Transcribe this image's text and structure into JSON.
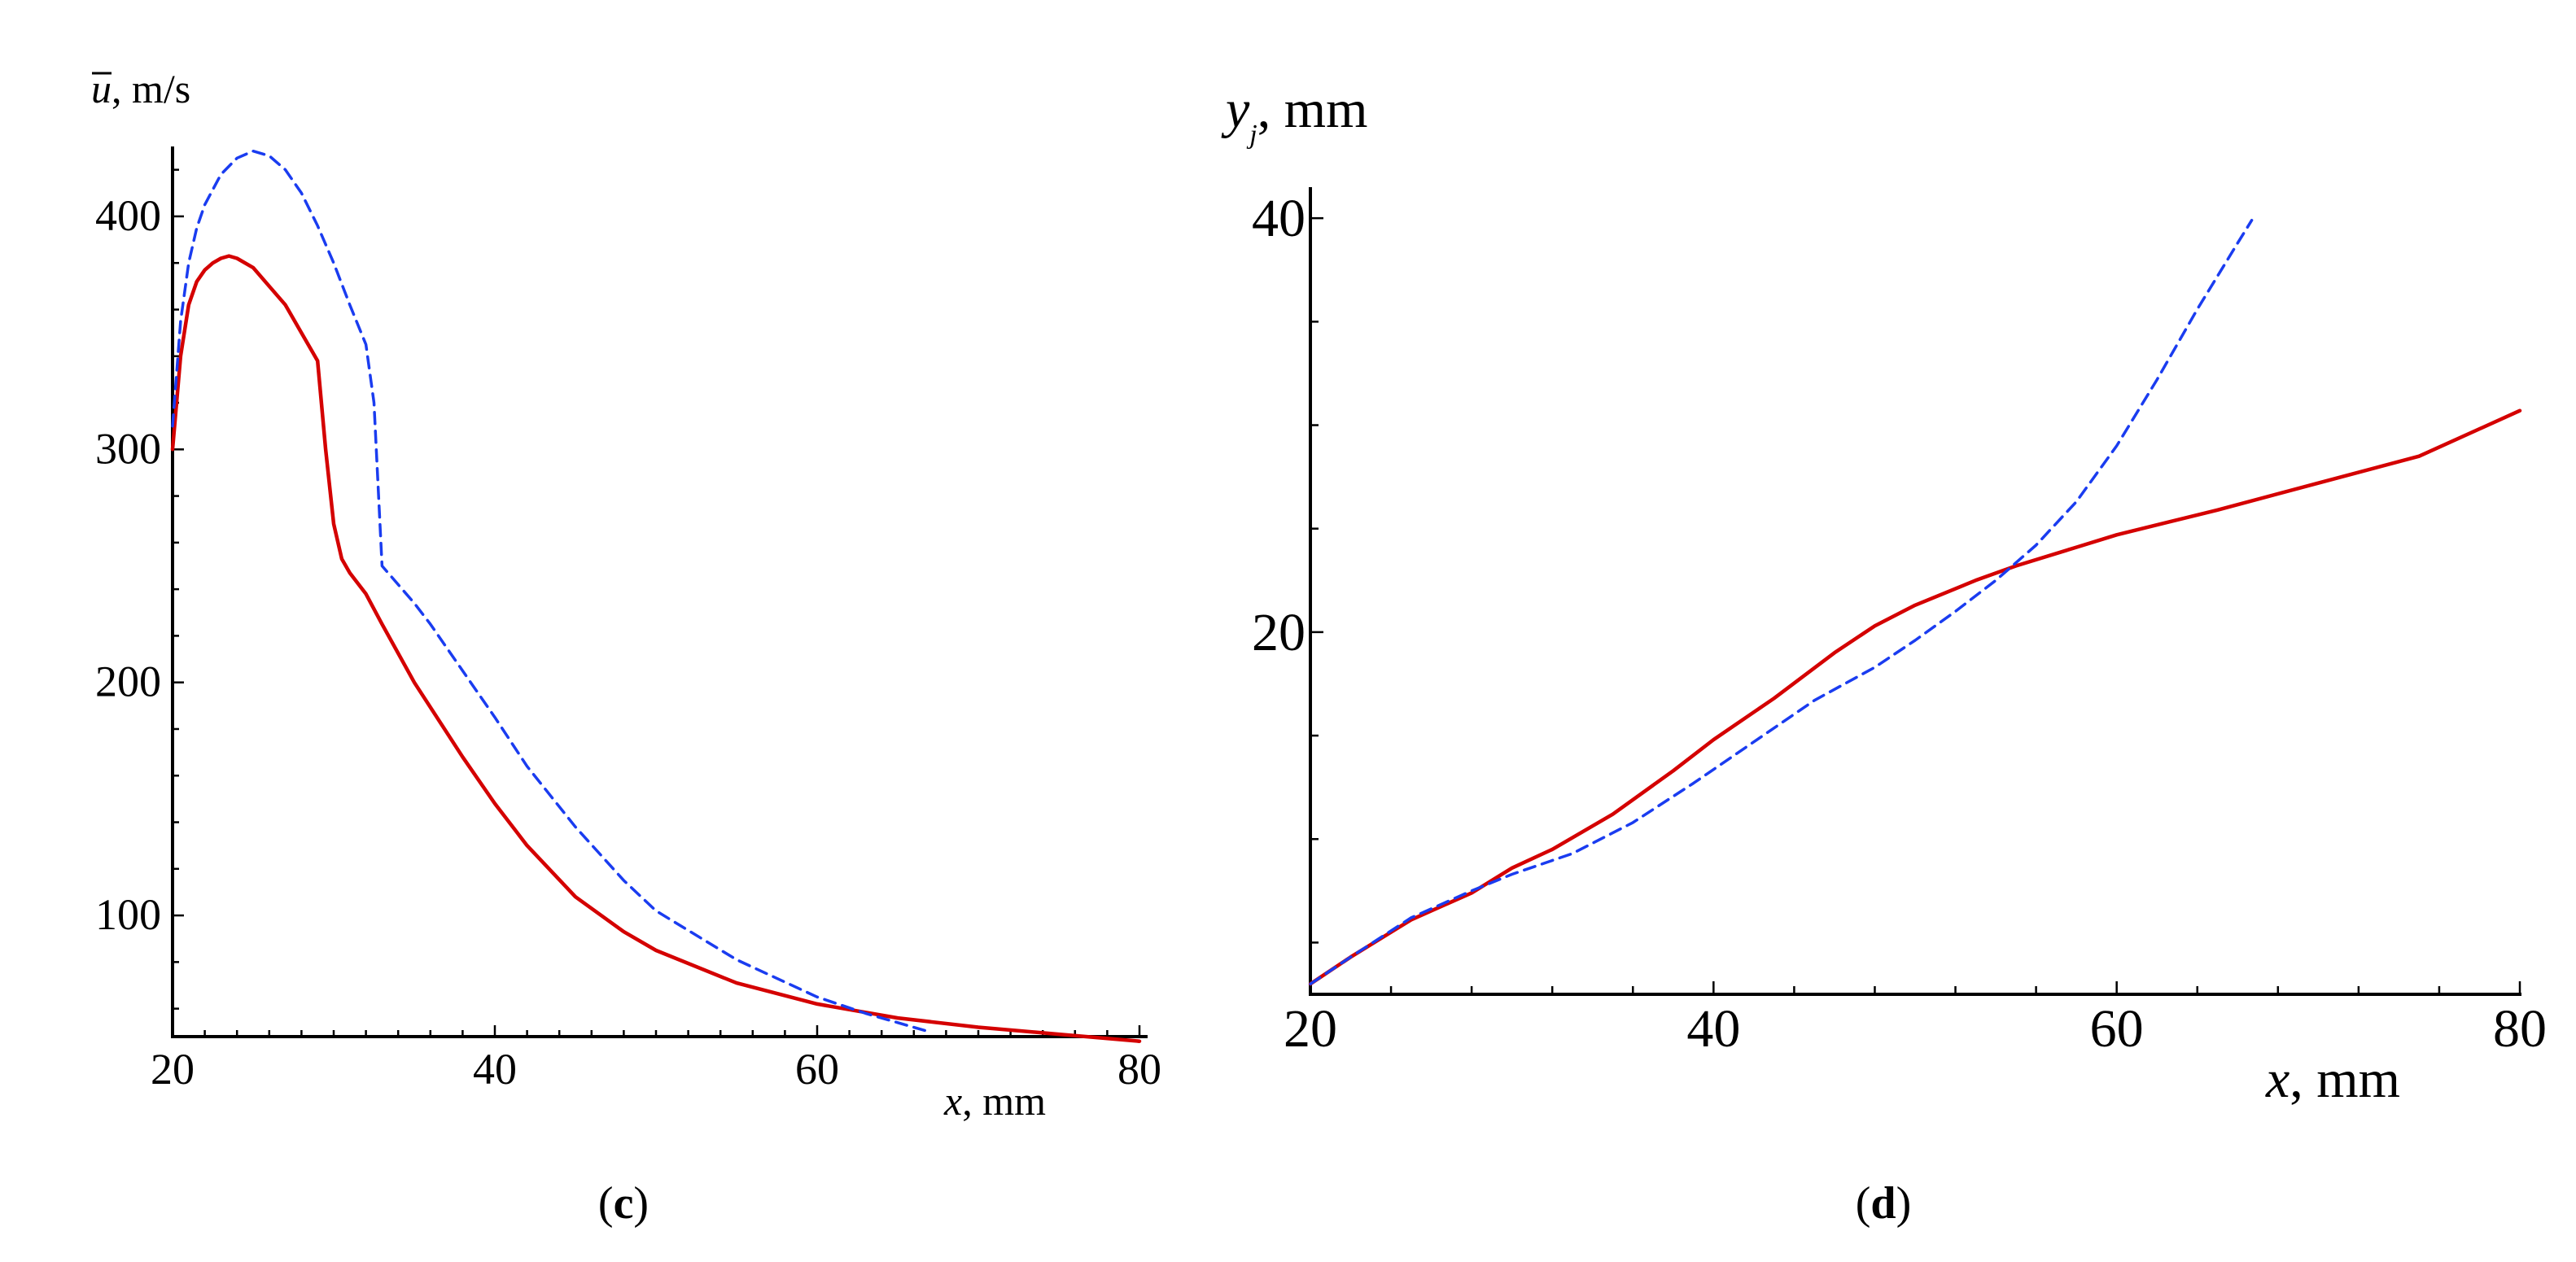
{
  "chart_data": [
    {
      "type": "line",
      "panel_label": "c",
      "xlabel_var": "x",
      "xlabel_unit": ", mm",
      "ylabel_var": "u",
      "ylabel_unit": ", m/s",
      "xlim": [
        20,
        80
      ],
      "ylim": [
        48,
        430
      ],
      "xticks": [
        20,
        40,
        60,
        80
      ],
      "yticks": [
        100,
        200,
        300,
        400
      ],
      "grid": false,
      "series": [
        {
          "style": "solid",
          "color": "#d40000",
          "x": [
            20,
            20.5,
            21,
            21.5,
            22,
            22.5,
            23,
            23.5,
            24,
            25,
            26,
            27,
            28,
            29,
            29.5,
            30,
            30.5,
            31,
            32,
            33,
            35,
            38,
            40,
            42,
            45,
            48,
            50,
            55,
            60,
            65,
            70,
            75,
            80
          ],
          "y": [
            300,
            340,
            362,
            372,
            377,
            380,
            382,
            383,
            382,
            378,
            370,
            362,
            350,
            338,
            300,
            268,
            253,
            247,
            238,
            225,
            200,
            168,
            148,
            130,
            108,
            93,
            85,
            71,
            62,
            56,
            52,
            49,
            46
          ]
        },
        {
          "style": "dashed",
          "color": "#1a3cf0",
          "x": [
            20,
            20.5,
            21,
            21.5,
            22,
            23,
            24,
            25,
            26,
            27,
            28,
            29,
            30,
            31,
            32,
            32.5,
            33,
            34,
            35,
            36,
            38,
            40,
            42,
            45,
            48,
            50,
            55,
            60,
            63,
            65,
            67
          ],
          "y": [
            310,
            355,
            380,
            395,
            405,
            418,
            425,
            428,
            426,
            420,
            410,
            396,
            380,
            362,
            345,
            320,
            250,
            242,
            234,
            225,
            205,
            185,
            164,
            138,
            115,
            102,
            81,
            65,
            58,
            54,
            50
          ]
        }
      ]
    },
    {
      "type": "line",
      "panel_label": "d",
      "xlabel_var": "x",
      "xlabel_unit": ", mm",
      "ylabel_var": "y",
      "ylabel_sub": "j",
      "ylabel_unit": ", mm",
      "xlim": [
        20,
        80
      ],
      "ylim": [
        2.5,
        41.5
      ],
      "xticks": [
        20,
        40,
        60,
        80
      ],
      "yticks": [
        20,
        40
      ],
      "grid": false,
      "series": [
        {
          "style": "solid",
          "color": "#d40000",
          "x": [
            20,
            22,
            25,
            28,
            30,
            32,
            35,
            38,
            40,
            43,
            46,
            48,
            50,
            53,
            55,
            58,
            60,
            65,
            70,
            75,
            80
          ],
          "y": [
            3,
            4.3,
            6.1,
            7.4,
            8.6,
            9.5,
            11.2,
            13.3,
            14.8,
            16.8,
            19,
            20.3,
            21.3,
            22.5,
            23.2,
            24.1,
            24.7,
            25.9,
            27.2,
            28.5,
            30.7
          ]
        },
        {
          "style": "dashed",
          "color": "#1a3cf0",
          "x": [
            20,
            22,
            25,
            28,
            30,
            33,
            36,
            39,
            42,
            45,
            48,
            50,
            52,
            54,
            56,
            58,
            60,
            62,
            64,
            66,
            66.7
          ],
          "y": [
            3,
            4.3,
            6.2,
            7.5,
            8.3,
            9.3,
            10.8,
            12.7,
            14.7,
            16.7,
            18.3,
            19.6,
            21,
            22.5,
            24.2,
            26.3,
            29,
            32.2,
            35.6,
            38.8,
            39.9
          ]
        }
      ]
    }
  ]
}
